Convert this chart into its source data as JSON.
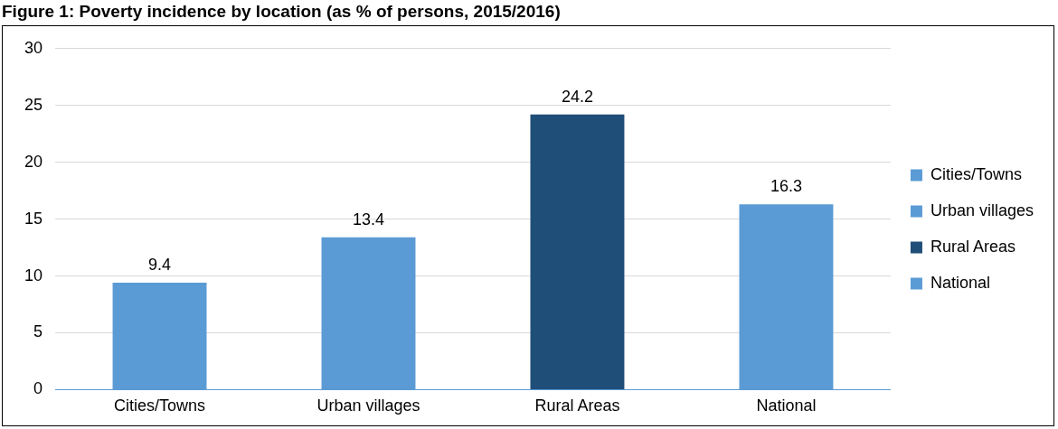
{
  "chart_data": {
    "type": "bar",
    "title": "Figure 1: Poverty incidence by location (as % of persons, 2015/2016)",
    "categories": [
      "Cities/Towns",
      "Urban villages",
      "Rural Areas",
      "National"
    ],
    "series": [
      {
        "name": "Cities/Towns",
        "color": "#5b9bd5",
        "values": [
          9.4,
          null,
          null,
          null
        ]
      },
      {
        "name": "Urban villages",
        "color": "#5b9bd5",
        "values": [
          null,
          13.4,
          null,
          null
        ]
      },
      {
        "name": "Rural Areas",
        "color": "#1f4e79",
        "values": [
          null,
          null,
          24.2,
          null
        ]
      },
      {
        "name": "National",
        "color": "#5b9bd5",
        "values": [
          null,
          null,
          null,
          16.3
        ]
      }
    ],
    "ylim": [
      0,
      30
    ],
    "yticks": [
      0,
      5,
      10,
      15,
      20,
      25,
      30
    ],
    "grid": "y",
    "legend": "right",
    "data_labels": true
  }
}
